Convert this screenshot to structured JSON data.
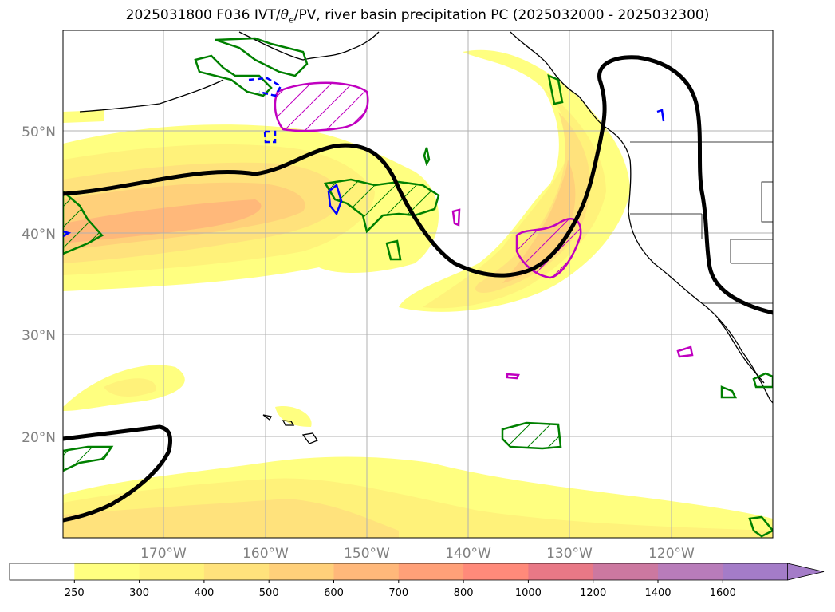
{
  "title": {
    "prefix": "2025031800 F036 IVT/",
    "theta": "θ",
    "theta_sub": "e",
    "suffix": "/PV, river basin precipitation PC (2025032000 - 2025032300)"
  },
  "map": {
    "lat_labels": [
      {
        "label": "50°N",
        "value": 50
      },
      {
        "label": "40°N",
        "value": 40
      },
      {
        "label": "30°N",
        "value": 30
      },
      {
        "label": "20°N",
        "value": 20
      }
    ],
    "lon_labels": [
      {
        "label": "170°W",
        "value": -170
      },
      {
        "label": "160°W",
        "value": -160
      },
      {
        "label": "150°W",
        "value": -150
      },
      {
        "label": "140°W",
        "value": -140
      },
      {
        "label": "130°W",
        "value": -130
      },
      {
        "label": "120°W",
        "value": -120
      }
    ],
    "colors": {
      "pv_contour": "#000000",
      "theta_e_contour": "#008000",
      "precip_contour": "#c000c0",
      "negative_contour": "#0000ff",
      "coastline": "#000000",
      "grid": "#b0b0b0"
    }
  },
  "colorbar": {
    "levels": [
      "250",
      "300",
      "400",
      "500",
      "600",
      "700",
      "800",
      "1000",
      "1200",
      "1400",
      "1600"
    ],
    "colors": [
      "#ffffff",
      "#ffff80",
      "#fff27a",
      "#ffe27c",
      "#ffd07a",
      "#ffb87a",
      "#ffa078",
      "#ff8a7a",
      "#e87886",
      "#cc78a0",
      "#b87cba",
      "#a47cc8"
    ],
    "extend": "max"
  }
}
